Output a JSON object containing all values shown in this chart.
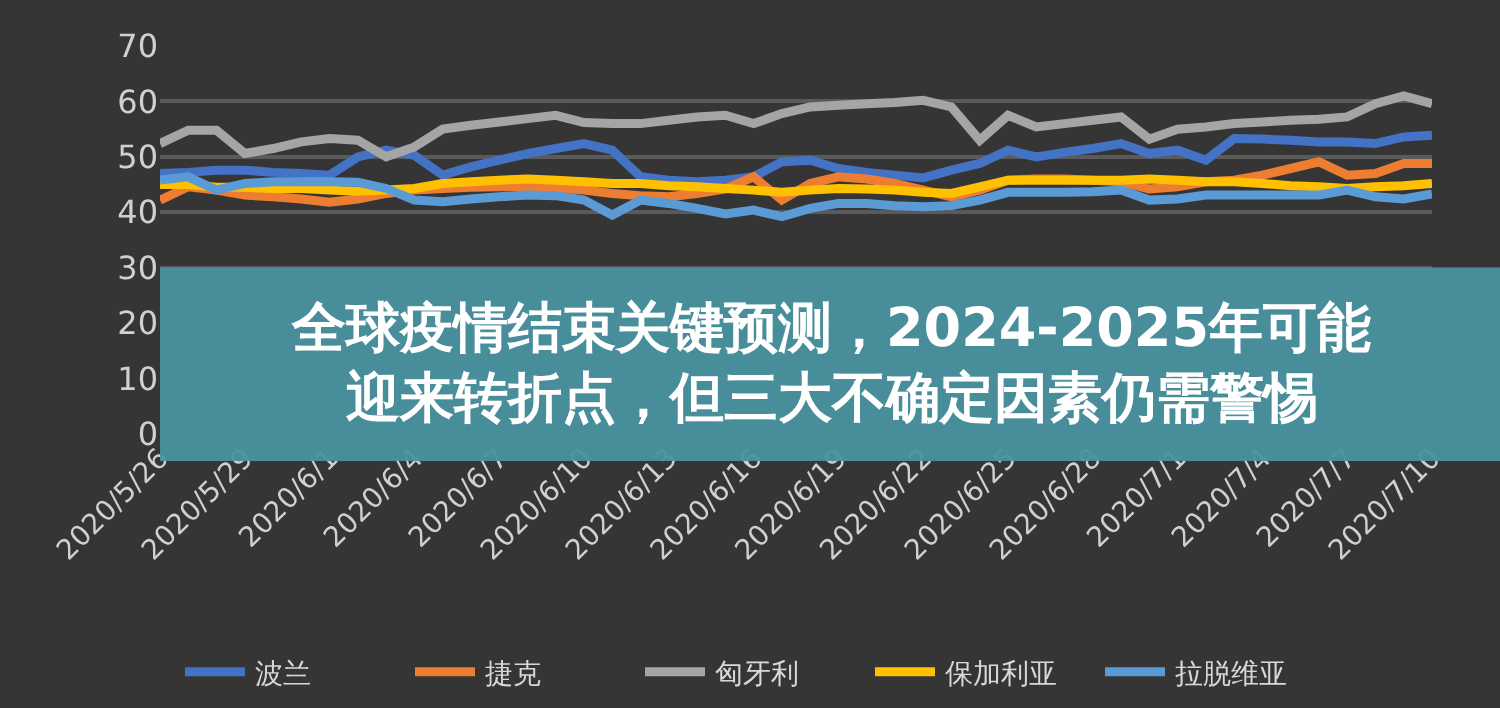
{
  "chart_data": {
    "type": "line",
    "title": "全球疫情结束关键预测，2024-2025年可能迎来转折点，但三大不确定因素仍需警惕",
    "x": [
      "2020-05-26",
      "2020-05-27",
      "2020-05-28",
      "2020-05-29",
      "2020-05-30",
      "2020-05-31",
      "2020-06-01",
      "2020-06-02",
      "2020-06-03",
      "2020-06-04",
      "2020-06-05",
      "2020-06-06",
      "2020-06-07",
      "2020-06-08",
      "2020-06-09",
      "2020-06-10",
      "2020-06-11",
      "2020-06-12",
      "2020-06-13",
      "2020-06-14",
      "2020-06-15",
      "2020-06-16",
      "2020-06-17",
      "2020-06-18",
      "2020-06-19",
      "2020-06-20",
      "2020-06-21",
      "2020-06-22",
      "2020-06-23",
      "2020-06-24",
      "2020-06-25",
      "2020-06-26",
      "2020-06-27",
      "2020-06-28",
      "2020-06-29",
      "2020-06-30",
      "2020-07-01",
      "2020-07-02",
      "2020-07-03",
      "2020-07-04",
      "2020-07-05",
      "2020-07-06",
      "2020-07-07",
      "2020-07-08",
      "2020-07-09",
      "2020-07-10"
    ],
    "series": [
      {
        "name": "波兰",
        "color": "#4472c4",
        "values": [
          47,
          47.2,
          47.6,
          47.6,
          47.2,
          47,
          46.7,
          50,
          51.2,
          50.3,
          46.7,
          48.2,
          49.4,
          50.6,
          51.5,
          52.4,
          51.2,
          46.4,
          45.8,
          45.5,
          45.8,
          46.4,
          49.1,
          49.4,
          47.9,
          47.2,
          46.7,
          46.2,
          47.6,
          48.8,
          51.2,
          50,
          50.8,
          51.5,
          52.4,
          50.6,
          51.2,
          49.4,
          53.3,
          53.2,
          53,
          52.7,
          52.7,
          52.4,
          53.6,
          53.9
        ]
      },
      {
        "name": "捷克",
        "color": "#ed7d31",
        "values": [
          42.2,
          44.6,
          44,
          43.1,
          42.8,
          42.4,
          41.8,
          42.4,
          43.4,
          44,
          44.3,
          44.5,
          44.6,
          44.6,
          44.4,
          44,
          43.4,
          43,
          42.8,
          43.4,
          44.2,
          46.4,
          42.2,
          45.2,
          46.4,
          46,
          45.2,
          44,
          42.8,
          44,
          45.8,
          46,
          46,
          45.8,
          45.5,
          44.2,
          44.6,
          45.5,
          45.8,
          46.7,
          47.9,
          49.1,
          46.7,
          47,
          48.8,
          48.8
        ]
      },
      {
        "name": "匈牙利",
        "color": "#a5a5a5",
        "values": [
          52.4,
          54.8,
          54.8,
          50.6,
          51.5,
          52.7,
          53.3,
          53,
          50,
          51.8,
          55,
          55.7,
          56.3,
          56.9,
          57.5,
          56.2,
          56,
          56,
          56.6,
          57.2,
          57.5,
          56,
          57.8,
          59,
          59.3,
          59.6,
          59.8,
          60.2,
          59,
          53,
          57.5,
          55.4,
          56,
          56.6,
          57.2,
          53.2,
          55,
          55.4,
          56,
          56.3,
          56.6,
          56.8,
          57.2,
          59.6,
          61,
          59.6
        ]
      },
      {
        "name": "保加利亚",
        "color": "#ffc000",
        "values": [
          45,
          45,
          44.5,
          44.5,
          44.3,
          44.3,
          44,
          43.8,
          44,
          44.3,
          45.2,
          45.5,
          45.8,
          46,
          45.8,
          45.5,
          45.2,
          45.2,
          44.8,
          44.6,
          44.3,
          44,
          43.6,
          44,
          44.3,
          44.2,
          44,
          43.6,
          43.4,
          44.6,
          45.8,
          45.8,
          45.8,
          45.8,
          45.8,
          46,
          45.8,
          45.5,
          45.5,
          45.2,
          44.8,
          44.6,
          44.3,
          44.6,
          44.8,
          45.2
        ]
      },
      {
        "name": "拉脱维亚",
        "color": "#5b9bd5",
        "values": [
          45.8,
          46.4,
          44,
          45.2,
          45.5,
          45.5,
          45.5,
          45.4,
          44.3,
          42.2,
          41.9,
          42.4,
          42.8,
          43.1,
          43,
          42.2,
          39.5,
          42.2,
          41.6,
          40.7,
          39.7,
          40.4,
          39.2,
          40.7,
          41.6,
          41.6,
          41.2,
          41,
          41.2,
          42.2,
          43.6,
          43.6,
          43.6,
          43.7,
          44,
          42.2,
          42.4,
          43.1,
          43.1,
          43.1,
          43.1,
          43.1,
          44,
          42.8,
          42.4,
          43.3
        ]
      }
    ],
    "xlim": [
      "2020-05-26",
      "2020-07-10"
    ],
    "xticks": [
      {
        "value": "2020-05-26",
        "label": "2020/5/26"
      },
      {
        "value": "2020-05-29",
        "label": "2020/5/29"
      },
      {
        "value": "2020-06-01",
        "label": "2020/6/1"
      },
      {
        "value": "2020-06-04",
        "label": "2020/6/4"
      },
      {
        "value": "2020-06-07",
        "label": "2020/6/7"
      },
      {
        "value": "2020-06-10",
        "label": "2020/6/10"
      },
      {
        "value": "2020-06-13",
        "label": "2020/6/13"
      },
      {
        "value": "2020-06-16",
        "label": "2020/6/16"
      },
      {
        "value": "2020-06-19",
        "label": "2020/6/19"
      },
      {
        "value": "2020-06-22",
        "label": "2020/6/22"
      },
      {
        "value": "2020-06-25",
        "label": "2020/6/25"
      },
      {
        "value": "2020-06-28",
        "label": "2020/6/28"
      },
      {
        "value": "2020-07-01",
        "label": "2020/7/1"
      },
      {
        "value": "2020-07-04",
        "label": "2020/7/4"
      },
      {
        "value": "2020-07-07",
        "label": "2020/7/7"
      },
      {
        "value": "2020-07-10",
        "label": "2020/7/10"
      }
    ],
    "ylim": [
      0,
      70
    ],
    "yticks": [
      0,
      10,
      20,
      30,
      40,
      50,
      60,
      70
    ],
    "grid": "y",
    "legend": "bottom",
    "marker": "none",
    "line_style": "solid"
  }
}
